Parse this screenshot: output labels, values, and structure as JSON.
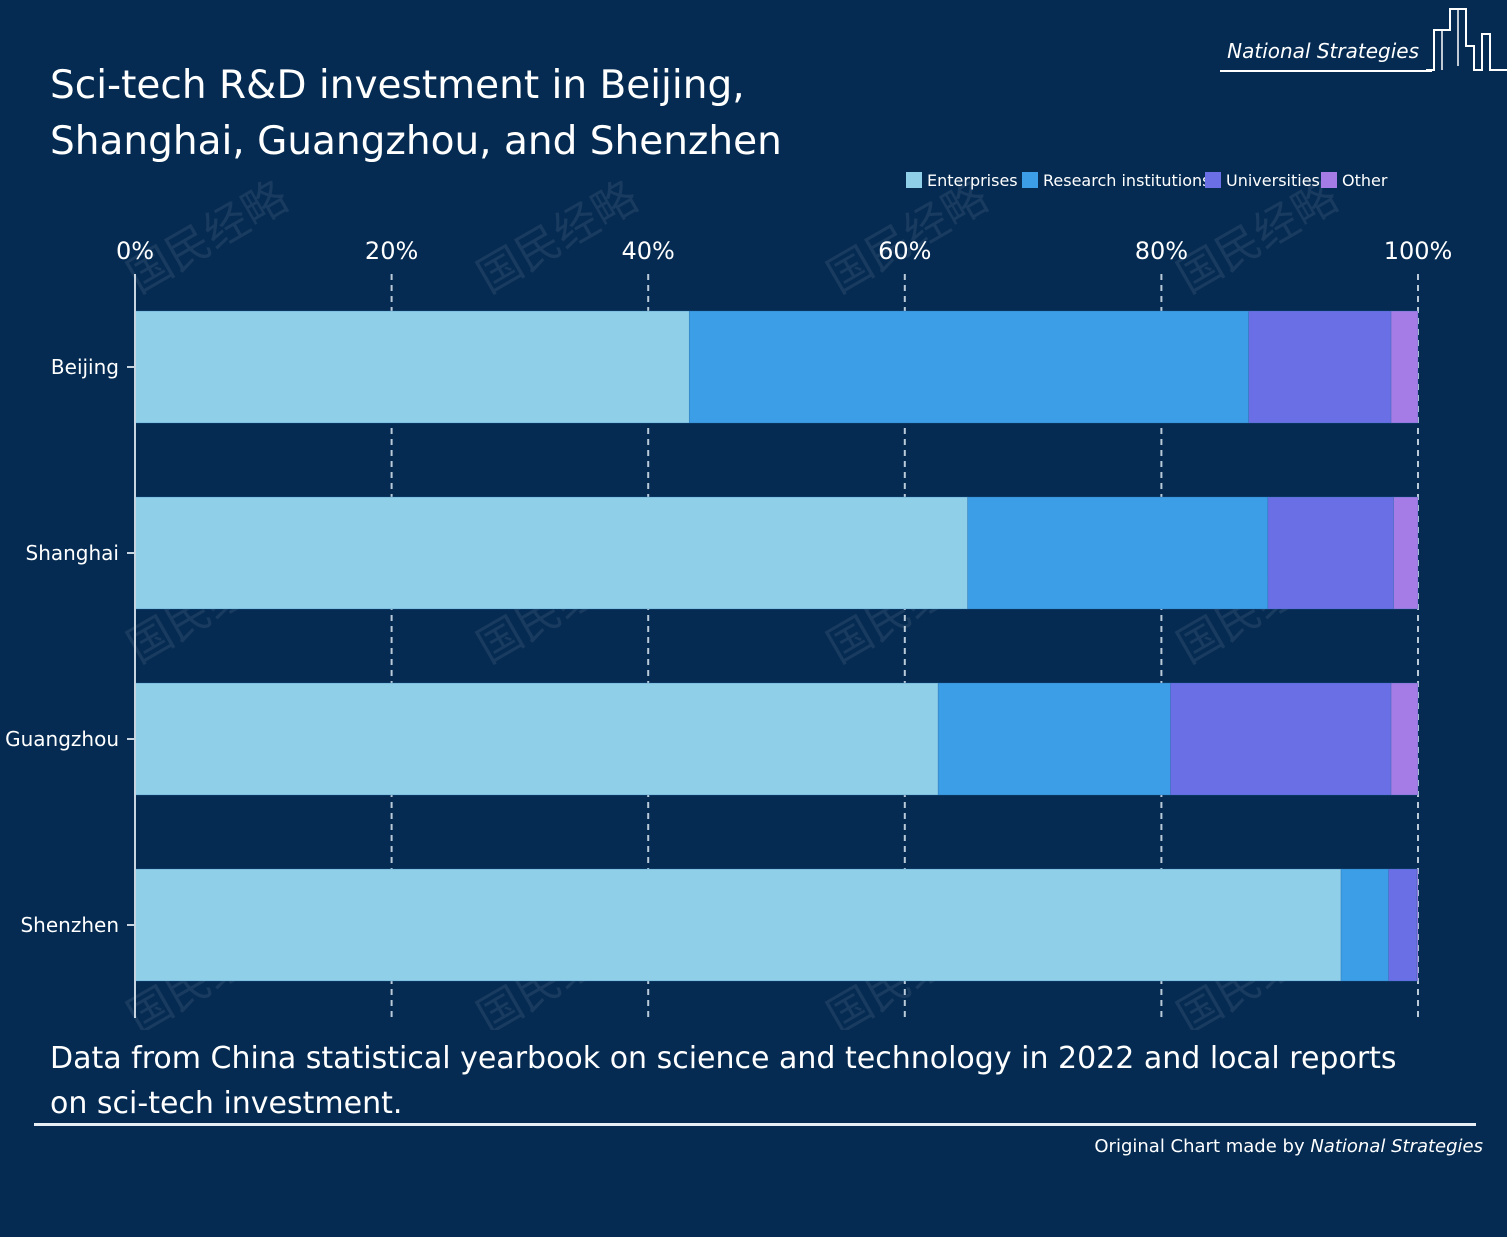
{
  "header": {
    "title": "Sci-tech R&D investment in Beijing, Shanghai, Guangzhou, and Shenzhen",
    "brand": "National Strategies"
  },
  "footer": {
    "source": "Data from China statistical yearbook on science and technology in 2022 and local reports on sci-tech investment.",
    "credit_prefix": "Original Chart made by",
    "credit_brand": "National Strategies"
  },
  "chart_data": {
    "type": "bar",
    "orientation": "horizontal",
    "stacked": true,
    "title": "Sci-tech R&D investment in Beijing, Shanghai, Guangzhou, and Shenzhen",
    "categories": [
      "Beijing",
      "Shanghai",
      "Guangzhou",
      "Shenzhen"
    ],
    "series": [
      {
        "name": "Enterprises",
        "color": "#8fd0e8",
        "values": [
          43.2,
          64.9,
          62.6,
          94.0
        ]
      },
      {
        "name": "Research institutions",
        "color": "#3c9ee6",
        "values": [
          43.6,
          23.4,
          18.1,
          3.7
        ]
      },
      {
        "name": "Universities",
        "color": "#6b6fe6",
        "values": [
          11.1,
          9.8,
          17.2,
          2.2
        ]
      },
      {
        "name": "Other",
        "color": "#a57be6",
        "values": [
          2.1,
          1.9,
          2.1,
          0.1
        ]
      }
    ],
    "xticks": [
      "0%",
      "20%",
      "40%",
      "60%",
      "80%",
      "100%"
    ],
    "xlim": [
      0,
      100
    ],
    "grid": true,
    "legend": "top-right",
    "watermark": "国民经略"
  }
}
